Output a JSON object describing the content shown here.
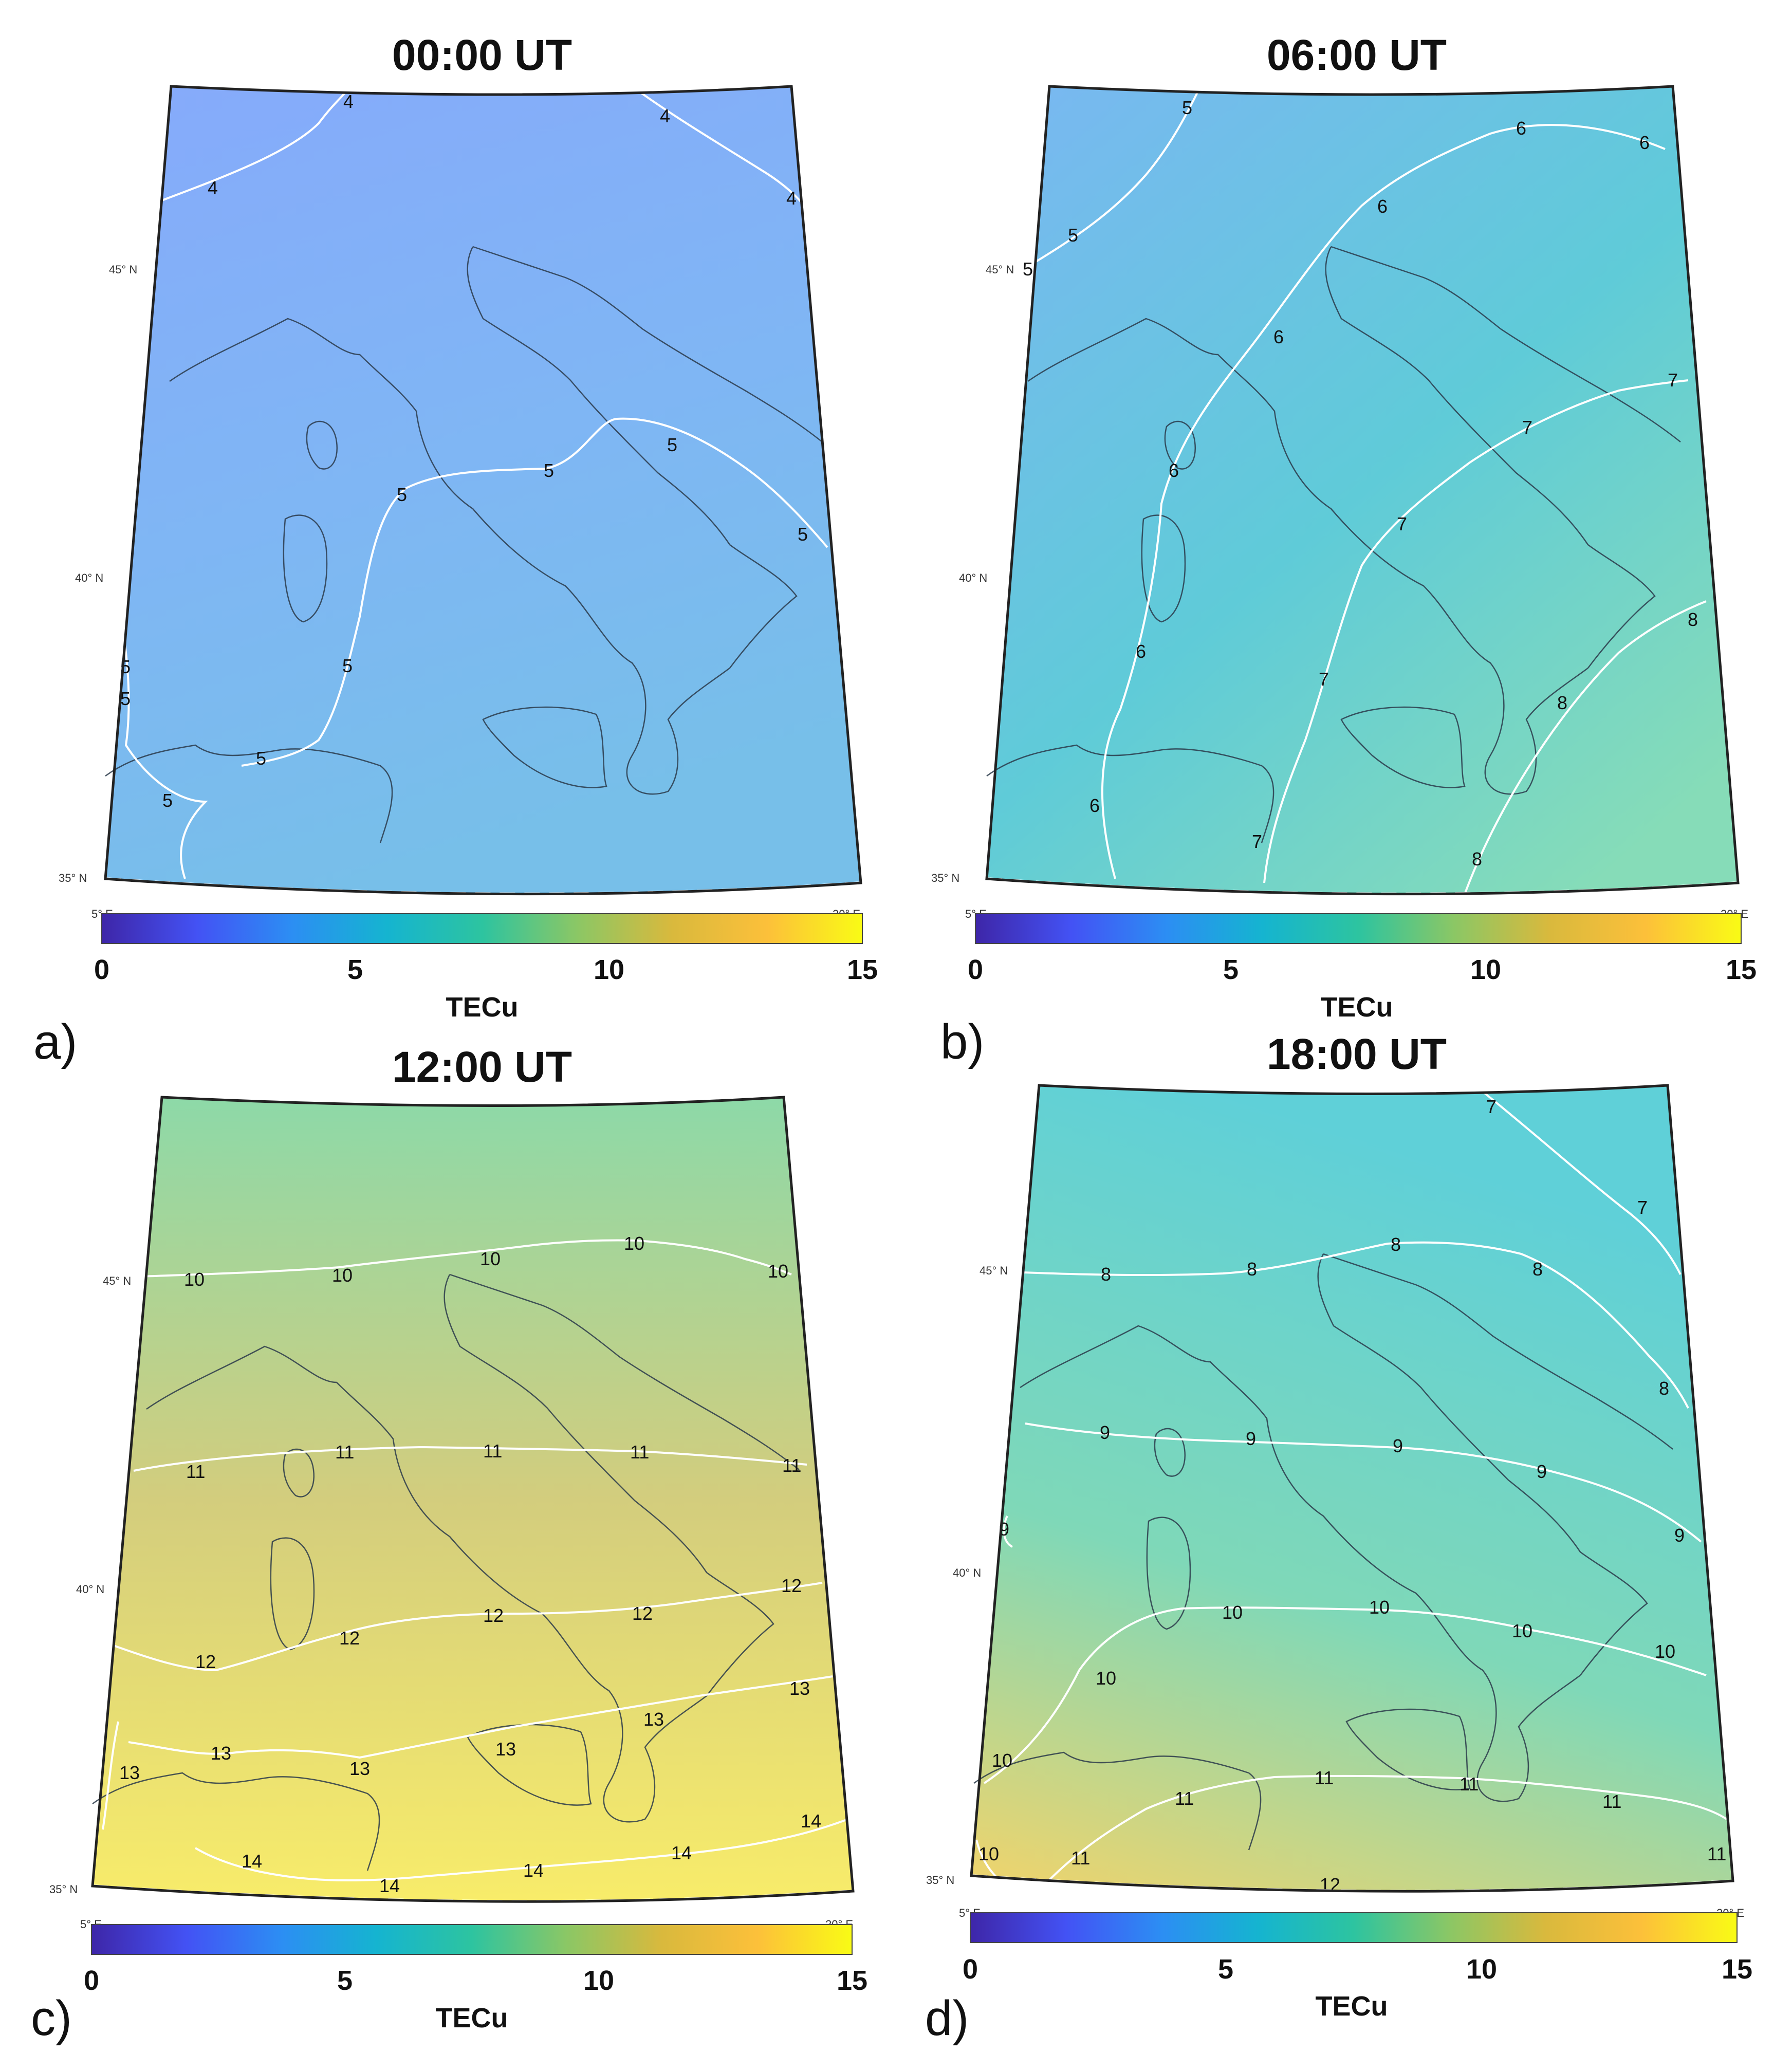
{
  "colorbar": {
    "ticks": [
      "0",
      "5",
      "10",
      "15"
    ],
    "label": "TECu",
    "stops": [
      "#3e26a8",
      "#4352f4",
      "#2c8ef3",
      "#15b4d0",
      "#2dc4a0",
      "#8bc765",
      "#d9b93d",
      "#fcc03a",
      "#f9fb15"
    ]
  },
  "graticule": {
    "lat_45": "45° N",
    "lat_40": "40° N",
    "lat_35": "35° N",
    "lon_5": "5° E",
    "lon_20": "20° E"
  },
  "panels": [
    {
      "letter": "a)",
      "title": "00:00 UT",
      "field": [
        "#86aafb",
        "#7fb6f4",
        "#77bfe9"
      ],
      "contours": [
        {
          "value": "4",
          "labels": [
            "4",
            "4",
            "4",
            "4"
          ]
        },
        {
          "value": "5",
          "labels": [
            "5",
            "5",
            "5",
            "5",
            "5",
            "5",
            "5",
            "5",
            "5"
          ]
        }
      ]
    },
    {
      "letter": "b)",
      "title": "06:00 UT",
      "field": [
        "#7ab7f2",
        "#5fcbd8",
        "#86dcb8"
      ],
      "contours": [
        {
          "value": "5",
          "labels": [
            "5",
            "5",
            "5"
          ]
        },
        {
          "value": "6",
          "labels": [
            "6",
            "6",
            "6",
            "6",
            "6",
            "6",
            "6"
          ]
        },
        {
          "value": "7",
          "labels": [
            "7",
            "7",
            "7",
            "7",
            "7"
          ]
        },
        {
          "value": "8",
          "labels": [
            "8",
            "8",
            "8"
          ]
        }
      ]
    },
    {
      "letter": "c)",
      "title": "12:00 UT",
      "field": [
        "#8dd9a8",
        "#d3cd7d",
        "#f8ec6a"
      ],
      "contours": [
        {
          "value": "10",
          "labels": [
            "10",
            "10",
            "10",
            "10",
            "10"
          ]
        },
        {
          "value": "11",
          "labels": [
            "11",
            "11",
            "11",
            "11",
            "11"
          ]
        },
        {
          "value": "12",
          "labels": [
            "12",
            "12",
            "12",
            "12",
            "12"
          ]
        },
        {
          "value": "13",
          "labels": [
            "13",
            "13",
            "13",
            "13",
            "13",
            "13"
          ]
        },
        {
          "value": "14",
          "labels": [
            "14",
            "14",
            "14",
            "14",
            "14"
          ]
        }
      ]
    },
    {
      "letter": "d)",
      "title": "18:00 UT",
      "field": [
        "#5fd0d8",
        "#7fd8b8",
        "#f2d46a"
      ],
      "contours": [
        {
          "value": "7",
          "labels": [
            "7",
            "7"
          ]
        },
        {
          "value": "8",
          "labels": [
            "8",
            "8",
            "8",
            "8",
            "8"
          ]
        },
        {
          "value": "9",
          "labels": [
            "9",
            "9",
            "9",
            "9",
            "9",
            "9"
          ]
        },
        {
          "value": "10",
          "labels": [
            "10",
            "10",
            "10",
            "10",
            "10",
            "10",
            "10"
          ]
        },
        {
          "value": "11",
          "labels": [
            "11",
            "11",
            "11",
            "11",
            "11",
            "11"
          ]
        },
        {
          "value": "12",
          "labels": [
            "12"
          ]
        }
      ]
    }
  ]
}
